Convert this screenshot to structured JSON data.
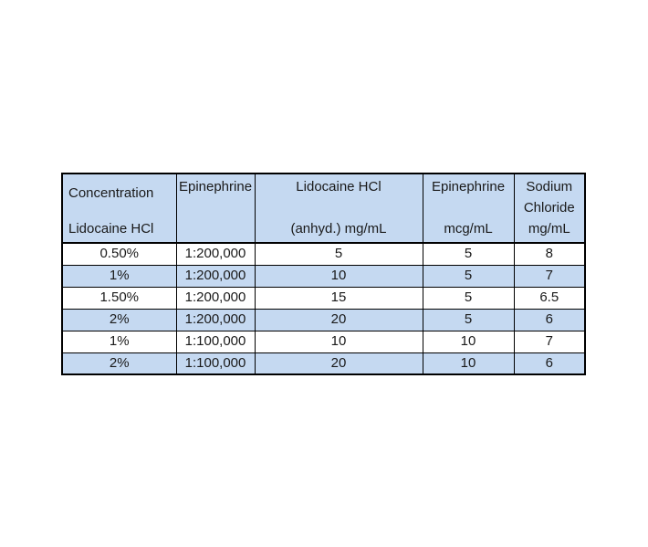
{
  "colors": {
    "page_bg": "#ffffff",
    "header_bg": "#c5d9f1",
    "band_bg": "#c5d9f1",
    "white_bg": "#ffffff",
    "border_color": "#000000",
    "text_color": "#1a1a1a"
  },
  "table": {
    "header": {
      "col1": {
        "line1": "Concentration",
        "line2": "Lidocaine HCl"
      },
      "col2": {
        "line1": "Epinephrine"
      },
      "col3": {
        "line1": "Lidocaine HCl",
        "line2": "(anhyd.) mg/mL"
      },
      "col4": {
        "line1": "Epinephrine",
        "line2": "mcg/mL"
      },
      "col5": {
        "line1": "Sodium",
        "line2": "Chloride",
        "line3": "mg/mL"
      }
    },
    "rows": [
      {
        "cells": [
          "0.50%",
          "1:200,000",
          "5",
          "5",
          "8"
        ]
      },
      {
        "cells": [
          "1%",
          "1:200,000",
          "10",
          "5",
          "7"
        ]
      },
      {
        "cells": [
          "1.50%",
          "1:200,000",
          "15",
          "5",
          "6.5"
        ]
      },
      {
        "cells": [
          "2%",
          "1:200,000",
          "20",
          "5",
          "6"
        ]
      },
      {
        "cells": [
          "1%",
          "1:100,000",
          "10",
          "10",
          "7"
        ]
      },
      {
        "cells": [
          "2%",
          "1:100,000",
          "20",
          "10",
          "6"
        ]
      }
    ]
  }
}
